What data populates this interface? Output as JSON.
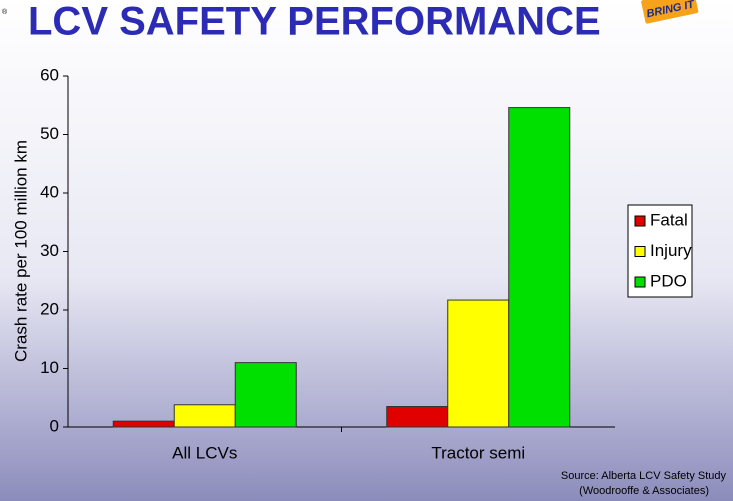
{
  "chart_data": {
    "type": "bar",
    "title": "LCV SAFETY PERFORMANCE",
    "y_label": "Crash rate per 100 million km",
    "categories": [
      "All LCVs",
      "Tractor semi"
    ],
    "series": [
      {
        "name": "Fatal",
        "color": "#e00000",
        "values": [
          1,
          3.5
        ]
      },
      {
        "name": "Injury",
        "color": "#ffff00",
        "values": [
          3.8,
          21.7
        ]
      },
      {
        "name": "PDO",
        "color": "#00e000",
        "values": [
          11,
          54.6
        ]
      }
    ],
    "ylim": [
      0,
      60
    ],
    "yticks": [
      0,
      10,
      20,
      30,
      40,
      50,
      60
    ],
    "grid": false,
    "legend": "right"
  },
  "logo": {
    "text": "BRING IT"
  },
  "source": [
    "Source: Alberta LCV Safety Study",
    "(Woodrooffe & Associates)"
  ]
}
